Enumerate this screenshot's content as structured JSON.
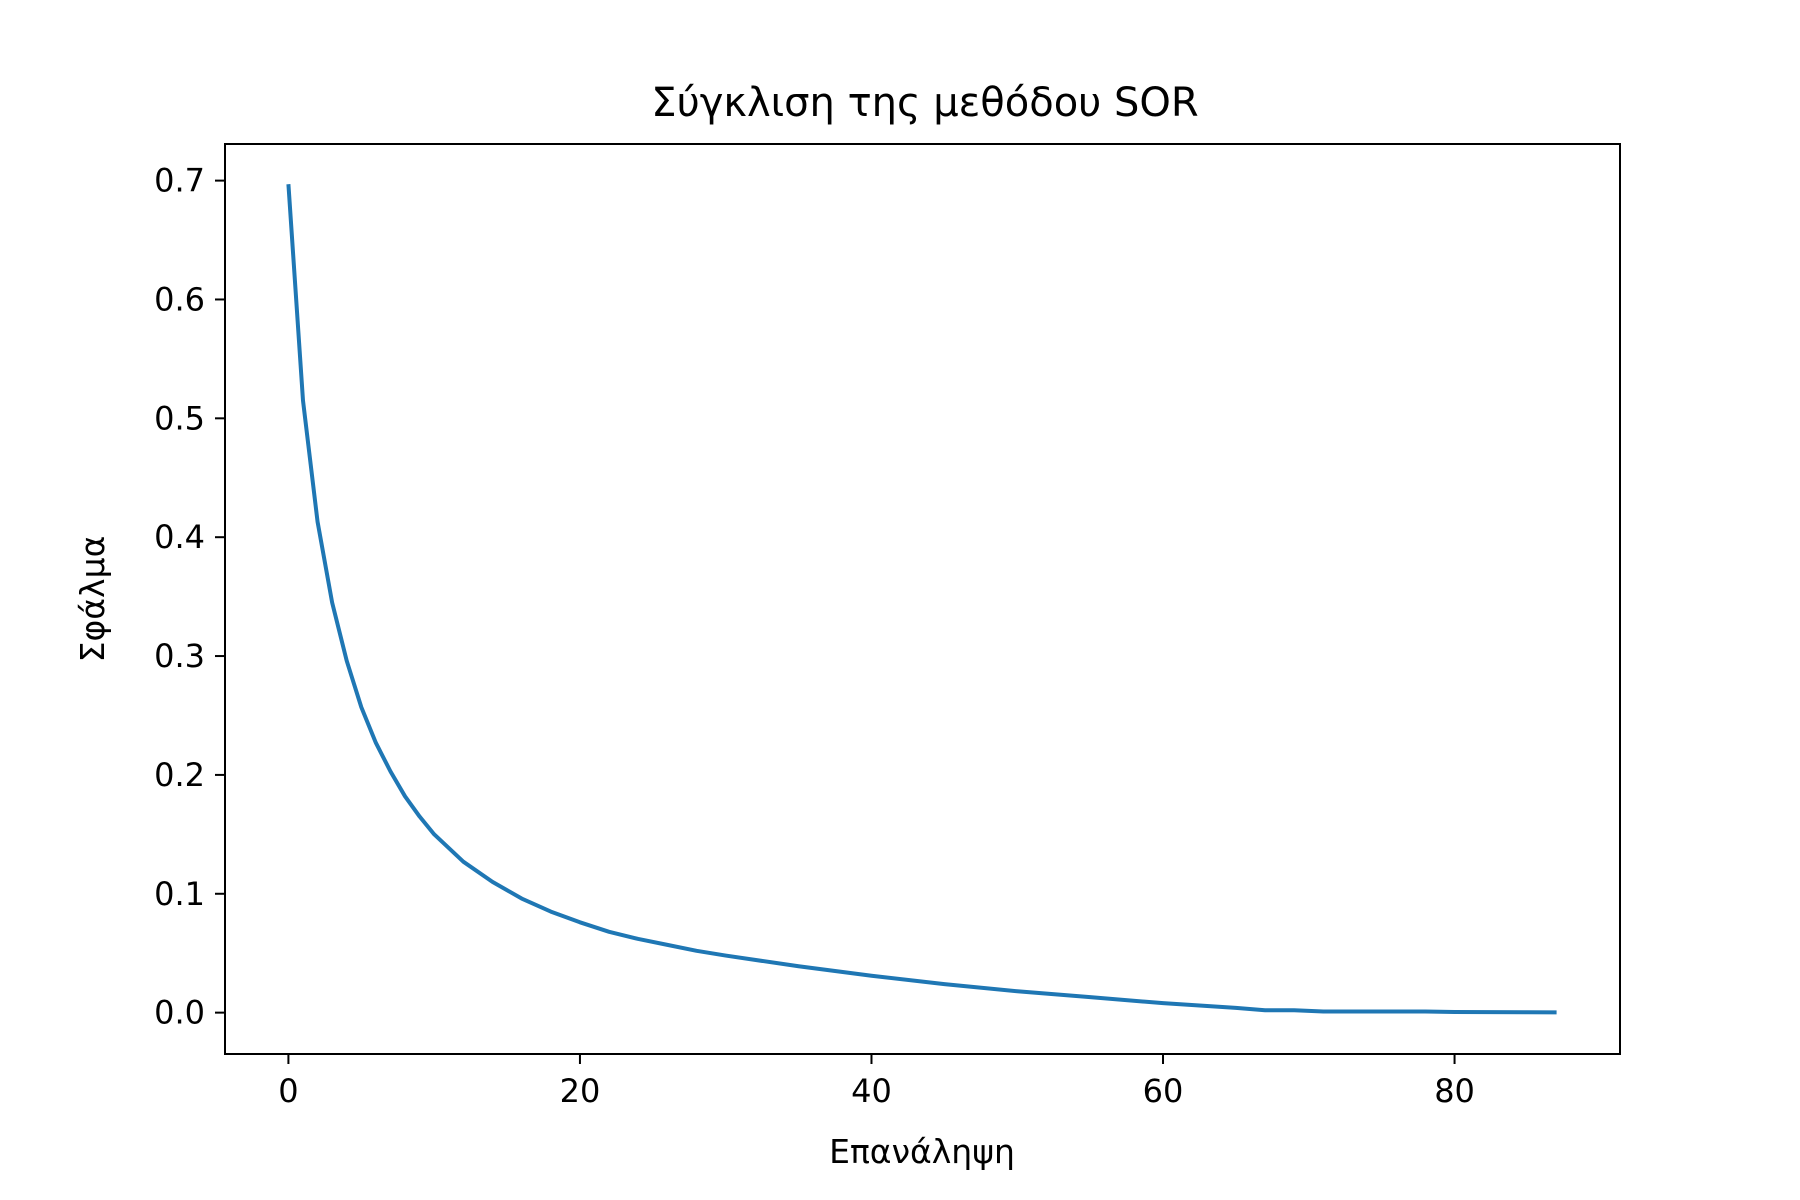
{
  "chart_data": {
    "type": "line",
    "title": "Σύγκλιση της μεθόδου SOR",
    "xlabel": "Επανάληψη",
    "ylabel": "Σφάλμα",
    "xlim": [
      -4.35,
      91.35
    ],
    "ylim": [
      -0.0348,
      0.7308
    ],
    "xticks": [
      0,
      20,
      40,
      60,
      80
    ],
    "yticks": [
      0.0,
      0.1,
      0.2,
      0.3,
      0.4,
      0.5,
      0.6,
      0.7
    ],
    "ytick_labels": [
      "0.0",
      "0.1",
      "0.2",
      "0.3",
      "0.4",
      "0.5",
      "0.6",
      "0.7"
    ],
    "grid": false,
    "legend": "none",
    "series": [
      {
        "color": "#1f77b4",
        "x": [
          0,
          1,
          2,
          3,
          4,
          5,
          6,
          7,
          8,
          9,
          10,
          12,
          14,
          16,
          18,
          20,
          22,
          24,
          26,
          28,
          30,
          35,
          40,
          45,
          50,
          55,
          60,
          65,
          67,
          69,
          71,
          75,
          78,
          80,
          85,
          87
        ],
        "y": [
          0.697,
          0.515,
          0.413,
          0.345,
          0.296,
          0.257,
          0.227,
          0.203,
          0.182,
          0.165,
          0.15,
          0.127,
          0.11,
          0.096,
          0.085,
          0.076,
          0.068,
          0.062,
          0.057,
          0.052,
          0.048,
          0.039,
          0.031,
          0.024,
          0.018,
          0.013,
          0.008,
          0.004,
          0.002,
          0.002,
          0.001,
          0.001,
          0.001,
          0.0005,
          0.0003,
          0.0002
        ]
      }
    ]
  }
}
